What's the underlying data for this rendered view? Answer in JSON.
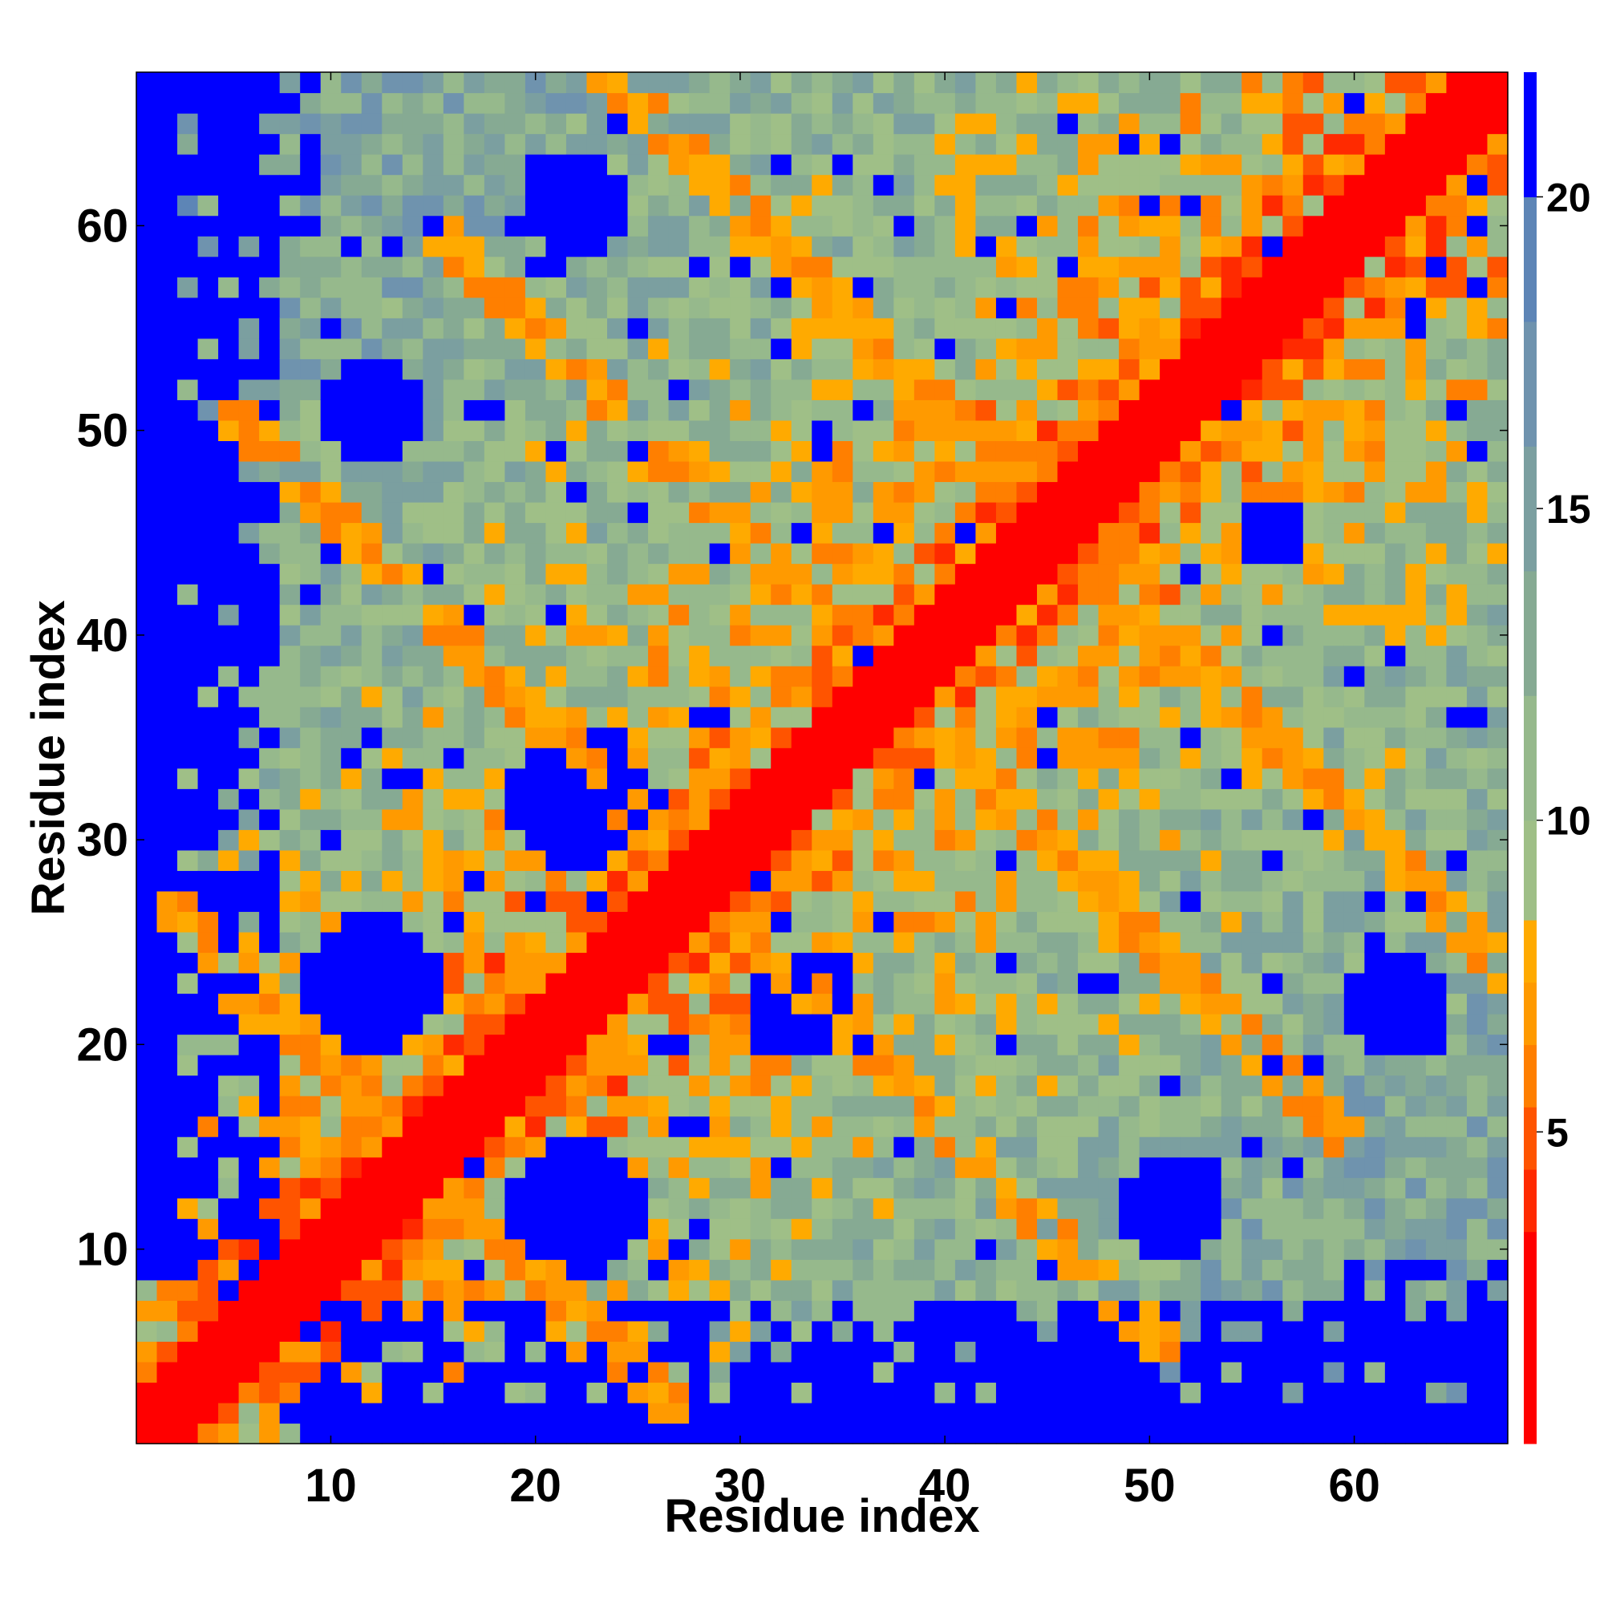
{
  "chart_data": {
    "type": "heatmap",
    "title": "",
    "xlabel": "Residue index",
    "ylabel": "Residue index",
    "n_residues": 67,
    "xlim": [
      1,
      67
    ],
    "ylim": [
      1,
      67
    ],
    "x_ticks": [
      10,
      20,
      30,
      40,
      50,
      60
    ],
    "y_ticks": [
      10,
      20,
      30,
      40,
      50,
      60
    ],
    "colorbar": {
      "ticks": [
        5,
        10,
        15,
        20
      ],
      "range": [
        0,
        22
      ],
      "bins": [
        {
          "upper": 3.4,
          "color": "#ff0000"
        },
        {
          "upper": 4.4,
          "color": "#ff2a00"
        },
        {
          "upper": 5.4,
          "color": "#ff5400"
        },
        {
          "upper": 6.4,
          "color": "#ff7f00"
        },
        {
          "upper": 7.4,
          "color": "#ff9a00"
        },
        {
          "upper": 8.4,
          "color": "#ffaa00"
        },
        {
          "upper": 10.0,
          "color": "#9fbf87"
        },
        {
          "upper": 12.0,
          "color": "#96b98c"
        },
        {
          "upper": 14.0,
          "color": "#86aa93"
        },
        {
          "upper": 16.0,
          "color": "#7b9fa0"
        },
        {
          "upper": 18.0,
          "color": "#6f93ae"
        },
        {
          "upper": 20.0,
          "color": "#5d85b6"
        },
        {
          "upper": 99.0,
          "color": "#0000ff"
        }
      ]
    },
    "value_scale": "distance",
    "grid": false
  }
}
